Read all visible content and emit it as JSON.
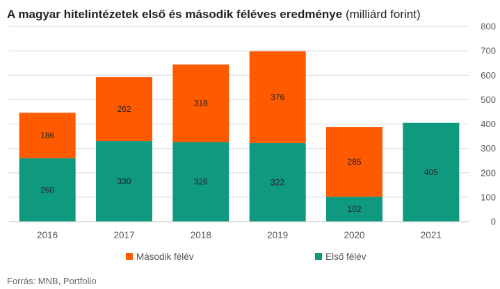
{
  "title": {
    "bold": "A magyar hitelintézetek első és második féléves eredménye",
    "unit": " (milliárd forint)"
  },
  "source": "Forrás: MNB, Portfolio",
  "colors": {
    "first_half": "#0f9a80",
    "second_half": "#ff5a00",
    "grid": "#d9d9d9"
  },
  "chart_data": {
    "type": "bar",
    "stacked": true,
    "categories": [
      "2016",
      "2017",
      "2018",
      "2019",
      "2020",
      "2021"
    ],
    "series": [
      {
        "name": "Első félév",
        "values": [
          260,
          330,
          326,
          322,
          102,
          405
        ]
      },
      {
        "name": "Második félév",
        "values": [
          186,
          262,
          318,
          376,
          285,
          null
        ]
      }
    ],
    "ylim": [
      0,
      800
    ],
    "yticks": [
      0,
      100,
      200,
      300,
      400,
      500,
      600,
      700,
      800
    ],
    "y_axis_position": "right",
    "grid": true,
    "legend": [
      "Második félév",
      "Első félév"
    ],
    "legend_position": "bottom"
  }
}
